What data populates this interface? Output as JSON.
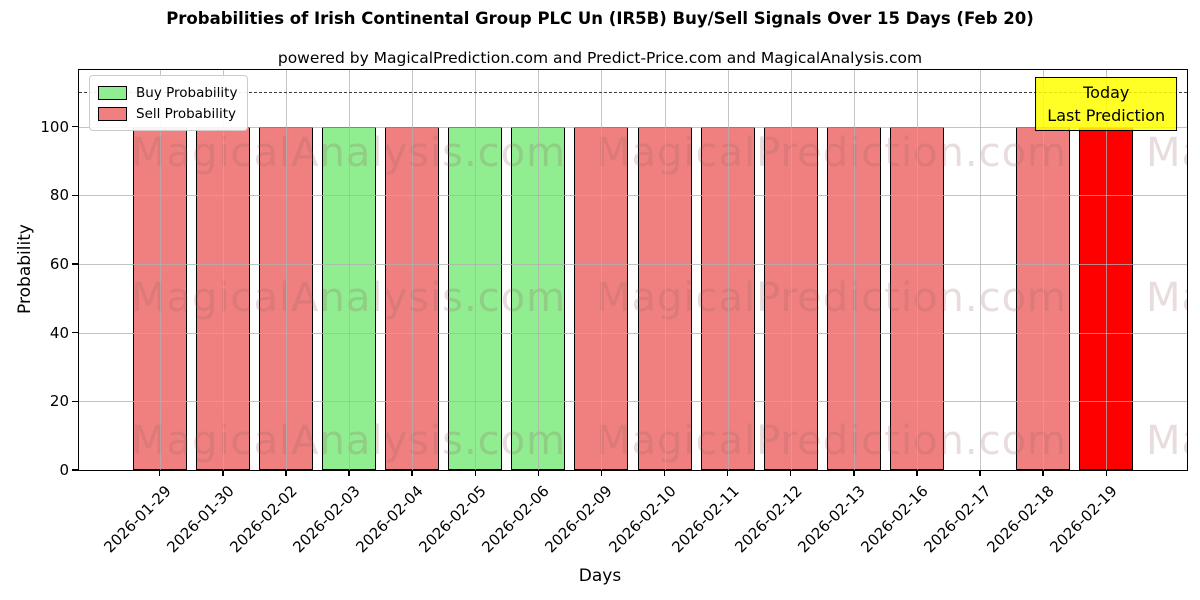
{
  "chart_data": {
    "type": "bar",
    "title": "Probabilities of Irish Continental Group PLC Un (IR5B) Buy/Sell Signals Over 15 Days (Feb 20)",
    "subtitle": "powered by MagicalPrediction.com and Predict-Price.com and MagicalAnalysis.com",
    "xlabel": "Days",
    "ylabel": "Probability",
    "ylim": [
      0,
      116.5
    ],
    "yticks": [
      0,
      20,
      40,
      60,
      80,
      100
    ],
    "grid": true,
    "threshold_line": 110,
    "categories": [
      "2026-01-29",
      "2026-01-30",
      "2026-02-02",
      "2026-02-03",
      "2026-02-04",
      "2026-02-05",
      "2026-02-06",
      "2026-02-09",
      "2026-02-10",
      "2026-02-11",
      "2026-02-12",
      "2026-02-13",
      "2026-02-16",
      "2026-02-17",
      "2026-02-18",
      "2026-02-19"
    ],
    "values": [
      100,
      100,
      100,
      100,
      100,
      100,
      100,
      100,
      100,
      100,
      100,
      100,
      100,
      0,
      100,
      100
    ],
    "bar_types": [
      "sell",
      "sell",
      "sell",
      "buy",
      "sell",
      "buy",
      "buy",
      "sell",
      "sell",
      "sell",
      "sell",
      "sell",
      "sell",
      "none",
      "sell",
      "today"
    ],
    "colors": {
      "buy": "#90ee90",
      "sell": "#f08080",
      "today": "#ff0000"
    },
    "legend": {
      "position": "upper left",
      "items": [
        {
          "label": "Buy Probability",
          "color": "#90ee90"
        },
        {
          "label": "Sell Probability",
          "color": "#f08080"
        }
      ]
    },
    "annotation": {
      "line1": "Today",
      "line2": "Last Prediction",
      "bg_color": "#ffff00",
      "category_index": 15
    },
    "watermarks": {
      "left_text": "MagicalAnalysis.com",
      "right_text": "MagicalPrediction.com"
    }
  }
}
